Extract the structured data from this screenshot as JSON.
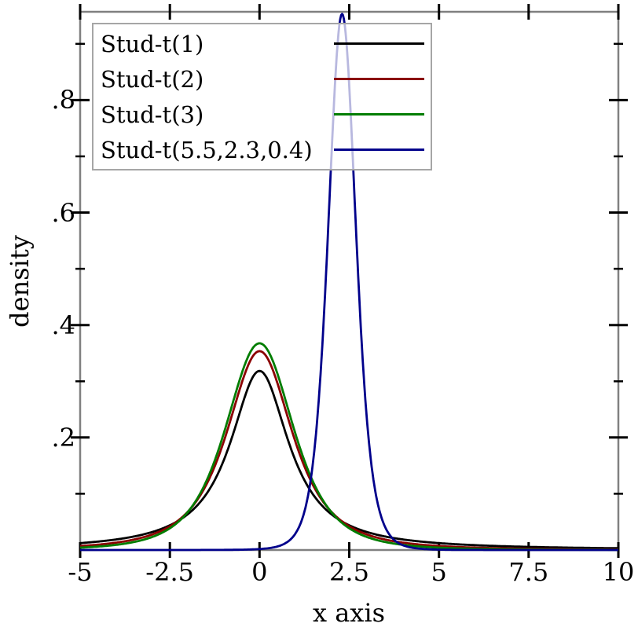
{
  "chart_data": {
    "type": "line",
    "title": "",
    "xlabel": "x axis",
    "ylabel": "density",
    "xlim": [
      -5,
      10
    ],
    "ylim": [
      0,
      0.957
    ],
    "grid": false,
    "frame_color": "#808080",
    "tick_color": "#000000",
    "x_ticks": {
      "values": [
        -5,
        -2.5,
        0,
        2.5,
        5,
        7.5,
        10
      ],
      "labels": [
        "-5",
        "-2.5",
        "0",
        "2.5",
        "5",
        "7.5",
        "10"
      ]
    },
    "y_ticks": {
      "values": [
        0.2,
        0.4,
        0.6,
        0.8
      ],
      "labels": [
        ".2",
        ".4",
        ".6",
        ".8"
      ],
      "minor_values": [
        0.1,
        0.3,
        0.5,
        0.7,
        0.9
      ]
    },
    "legend": {
      "position": "top-left",
      "border_color": "#a6a6a6",
      "background": "rgba(255,255,255,0.72)"
    },
    "series": [
      {
        "name": "Stud-t(1)",
        "color": "#000000",
        "distribution": "student-t",
        "df": 1,
        "loc": 0,
        "scale": 1,
        "peak_x": 0,
        "peak_density": 0.318
      },
      {
        "name": "Stud-t(2)",
        "color": "#8b0000",
        "distribution": "student-t",
        "df": 2,
        "loc": 0,
        "scale": 1,
        "peak_x": 0,
        "peak_density": 0.354
      },
      {
        "name": "Stud-t(3)",
        "color": "#007d00",
        "distribution": "student-t",
        "df": 3,
        "loc": 0,
        "scale": 1,
        "peak_x": 0,
        "peak_density": 0.368
      },
      {
        "name": "Stud-t(5.5,2.3,0.4)",
        "color": "#00008b",
        "distribution": "student-t",
        "df": 5.5,
        "loc": 2.3,
        "scale": 0.4,
        "peak_x": 2.3,
        "peak_density": 0.953
      }
    ]
  }
}
